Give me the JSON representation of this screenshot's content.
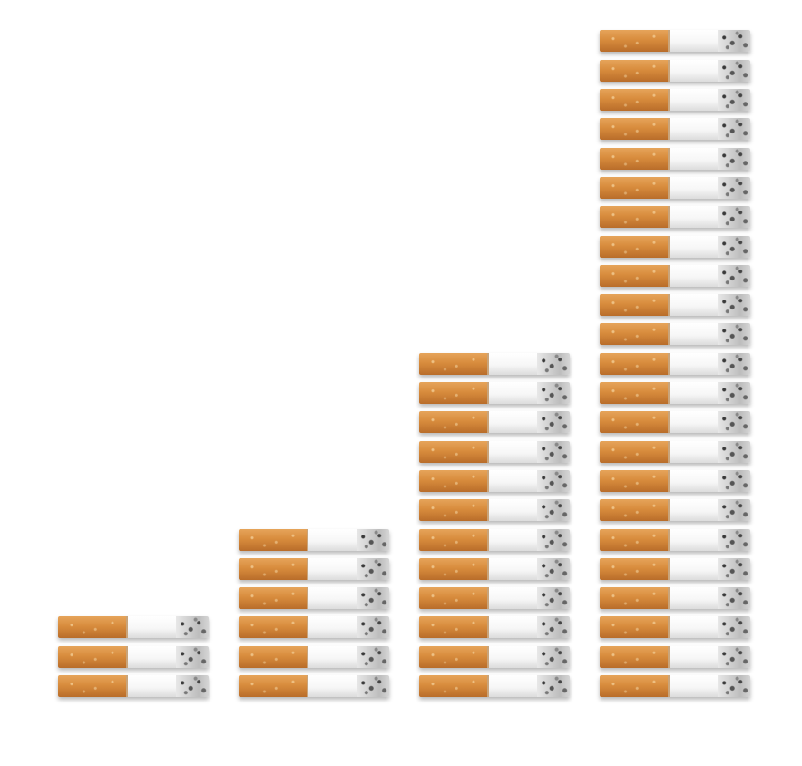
{
  "chart_data": {
    "type": "bar",
    "title": "",
    "xlabel": "",
    "ylabel": "",
    "categories": [
      "",
      "",
      "",
      ""
    ],
    "values": [
      3,
      6,
      12,
      23
    ],
    "unit_icon": "cigarette-icon",
    "colors": {
      "filter": "#d88c3d",
      "paper": "#ffffff",
      "ash": "#bdbdbd"
    },
    "grid": false,
    "legend": "none"
  }
}
